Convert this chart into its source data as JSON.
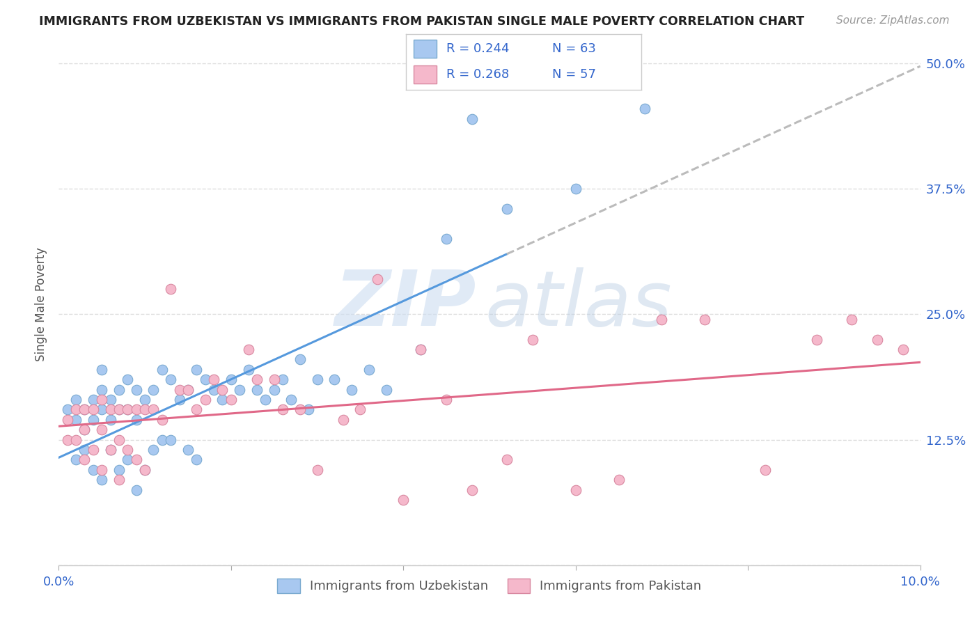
{
  "title": "IMMIGRANTS FROM UZBEKISTAN VS IMMIGRANTS FROM PAKISTAN SINGLE MALE POVERTY CORRELATION CHART",
  "source": "Source: ZipAtlas.com",
  "ylabel": "Single Male Poverty",
  "xlim": [
    0.0,
    0.1
  ],
  "ylim": [
    -0.02,
    0.54
  ],
  "plot_ylim": [
    0.0,
    0.52
  ],
  "xticks": [
    0.0,
    0.02,
    0.04,
    0.06,
    0.08,
    0.1
  ],
  "xticklabels": [
    "0.0%",
    "",
    "",
    "",
    "",
    "10.0%"
  ],
  "yticks": [
    0.0,
    0.125,
    0.25,
    0.375,
    0.5
  ],
  "yticklabels": [
    "",
    "12.5%",
    "25.0%",
    "37.5%",
    "50.0%"
  ],
  "series1_color": "#a8c8f0",
  "series1_edge": "#7aaad0",
  "series2_color": "#f5b8cb",
  "series2_edge": "#d888a0",
  "trend1_color": "#5599dd",
  "trend2_color": "#e06888",
  "trend_ext_color": "#bbbbbb",
  "background_color": "#ffffff",
  "grid_color": "#dddddd",
  "tick_color": "#3366cc",
  "title_color": "#222222",
  "source_color": "#999999",
  "ylabel_color": "#555555",
  "legend_label_color": "#3366cc",
  "series1_x": [
    0.001,
    0.002,
    0.002,
    0.002,
    0.003,
    0.003,
    0.003,
    0.004,
    0.004,
    0.004,
    0.005,
    0.005,
    0.005,
    0.005,
    0.006,
    0.006,
    0.006,
    0.007,
    0.007,
    0.007,
    0.008,
    0.008,
    0.008,
    0.009,
    0.009,
    0.009,
    0.01,
    0.01,
    0.011,
    0.011,
    0.012,
    0.012,
    0.013,
    0.013,
    0.014,
    0.015,
    0.015,
    0.016,
    0.016,
    0.017,
    0.018,
    0.019,
    0.02,
    0.021,
    0.022,
    0.023,
    0.024,
    0.025,
    0.026,
    0.027,
    0.028,
    0.029,
    0.03,
    0.032,
    0.034,
    0.036,
    0.038,
    0.042,
    0.045,
    0.048,
    0.052,
    0.06,
    0.068
  ],
  "series1_y": [
    0.155,
    0.165,
    0.145,
    0.105,
    0.155,
    0.135,
    0.115,
    0.165,
    0.145,
    0.095,
    0.195,
    0.175,
    0.155,
    0.085,
    0.165,
    0.145,
    0.115,
    0.175,
    0.155,
    0.095,
    0.185,
    0.155,
    0.105,
    0.175,
    0.145,
    0.075,
    0.165,
    0.095,
    0.175,
    0.115,
    0.195,
    0.125,
    0.185,
    0.125,
    0.165,
    0.175,
    0.115,
    0.195,
    0.105,
    0.185,
    0.175,
    0.165,
    0.185,
    0.175,
    0.195,
    0.175,
    0.165,
    0.175,
    0.185,
    0.165,
    0.205,
    0.155,
    0.185,
    0.185,
    0.175,
    0.195,
    0.175,
    0.215,
    0.325,
    0.445,
    0.355,
    0.375,
    0.455
  ],
  "series2_x": [
    0.001,
    0.001,
    0.002,
    0.002,
    0.003,
    0.003,
    0.003,
    0.004,
    0.004,
    0.005,
    0.005,
    0.005,
    0.006,
    0.006,
    0.007,
    0.007,
    0.007,
    0.008,
    0.008,
    0.009,
    0.009,
    0.01,
    0.01,
    0.011,
    0.012,
    0.013,
    0.014,
    0.015,
    0.016,
    0.017,
    0.018,
    0.019,
    0.02,
    0.022,
    0.023,
    0.025,
    0.026,
    0.028,
    0.03,
    0.033,
    0.035,
    0.037,
    0.04,
    0.042,
    0.045,
    0.048,
    0.052,
    0.055,
    0.06,
    0.065,
    0.07,
    0.075,
    0.082,
    0.088,
    0.092,
    0.095,
    0.098
  ],
  "series2_y": [
    0.145,
    0.125,
    0.155,
    0.125,
    0.155,
    0.135,
    0.105,
    0.155,
    0.115,
    0.165,
    0.135,
    0.095,
    0.155,
    0.115,
    0.155,
    0.125,
    0.085,
    0.155,
    0.115,
    0.155,
    0.105,
    0.155,
    0.095,
    0.155,
    0.145,
    0.275,
    0.175,
    0.175,
    0.155,
    0.165,
    0.185,
    0.175,
    0.165,
    0.215,
    0.185,
    0.185,
    0.155,
    0.155,
    0.095,
    0.145,
    0.155,
    0.285,
    0.065,
    0.215,
    0.165,
    0.075,
    0.105,
    0.225,
    0.075,
    0.085,
    0.245,
    0.245,
    0.095,
    0.225,
    0.245,
    0.225,
    0.215
  ],
  "trend1_x_solid_end": 0.052,
  "trend1_x_dash_start": 0.052,
  "trend1_x_end": 0.1,
  "trend2_x_end": 0.1
}
